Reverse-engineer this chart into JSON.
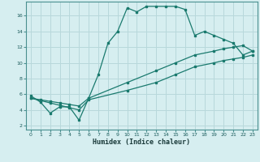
{
  "title": "",
  "xlabel": "Humidex (Indice chaleur)",
  "bg_color": "#d6eef0",
  "line_color": "#1a7a6e",
  "grid_color": "#b8d8db",
  "line1_x": [
    0,
    1,
    2,
    3,
    4,
    5,
    6,
    7,
    8,
    9,
    10,
    11,
    12,
    13,
    14,
    15,
    16,
    17,
    18,
    19,
    20,
    21,
    22,
    23
  ],
  "line1_y": [
    5.8,
    5.0,
    3.6,
    4.4,
    4.4,
    2.7,
    5.5,
    8.5,
    12.5,
    14.0,
    17.0,
    16.5,
    17.2,
    17.2,
    17.2,
    17.2,
    16.8,
    13.5,
    14.0,
    13.5,
    13.0,
    12.5,
    11.0,
    11.5
  ],
  "line2_x": [
    0,
    1,
    2,
    3,
    4,
    5,
    6,
    10,
    13,
    15,
    17,
    19,
    20,
    21,
    22,
    23
  ],
  "line2_y": [
    5.5,
    5.3,
    5.1,
    4.9,
    4.7,
    4.5,
    5.5,
    7.5,
    9.0,
    10.0,
    11.0,
    11.5,
    11.8,
    12.0,
    12.2,
    11.5
  ],
  "line3_x": [
    0,
    1,
    2,
    3,
    4,
    5,
    6,
    10,
    13,
    15,
    17,
    19,
    20,
    21,
    22,
    23
  ],
  "line3_y": [
    5.5,
    5.2,
    4.9,
    4.6,
    4.3,
    4.0,
    5.3,
    6.5,
    7.5,
    8.5,
    9.5,
    10.0,
    10.3,
    10.5,
    10.7,
    11.0
  ],
  "xlim": [
    -0.5,
    23.5
  ],
  "ylim": [
    1.5,
    17.8
  ],
  "yticks": [
    2,
    4,
    6,
    8,
    10,
    12,
    14,
    16
  ],
  "xticks": [
    0,
    1,
    2,
    3,
    4,
    5,
    6,
    7,
    8,
    9,
    10,
    11,
    12,
    13,
    14,
    15,
    16,
    17,
    18,
    19,
    20,
    21,
    22,
    23
  ]
}
